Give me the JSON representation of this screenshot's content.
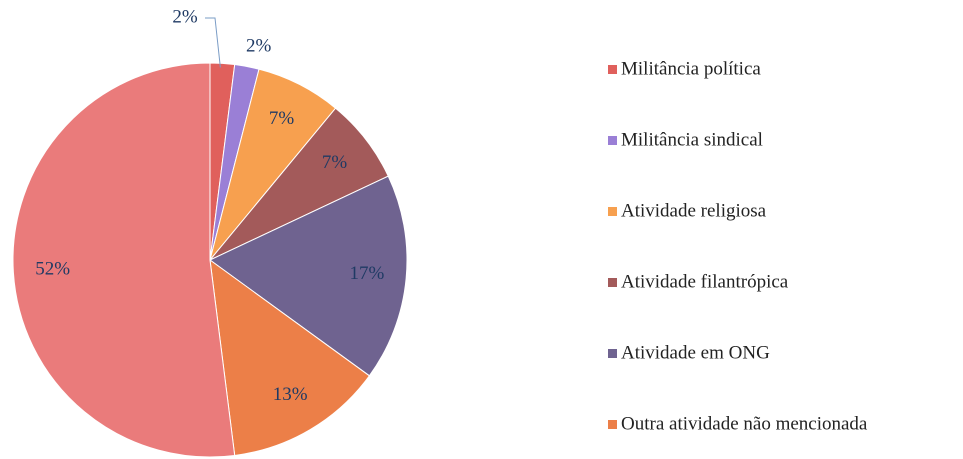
{
  "chart_data": {
    "type": "pie",
    "categories": [
      "Militância política",
      "Militância sindical",
      "Atividade religiosa",
      "Atividade filantrópica",
      "Atividade em ONG",
      "Outra atividade não mencionada",
      null
    ],
    "values": [
      2,
      2,
      7,
      7,
      17,
      13,
      52
    ],
    "value_labels": [
      "2%",
      "2%",
      "7%",
      "7%",
      "17%",
      "13%",
      "52%"
    ],
    "colors": [
      "#e0605c",
      "#9a7fd6",
      "#f7a04f",
      "#a35a5a",
      "#6f6390",
      "#ec7f48",
      "#ea7b7b"
    ],
    "legend": "right"
  }
}
